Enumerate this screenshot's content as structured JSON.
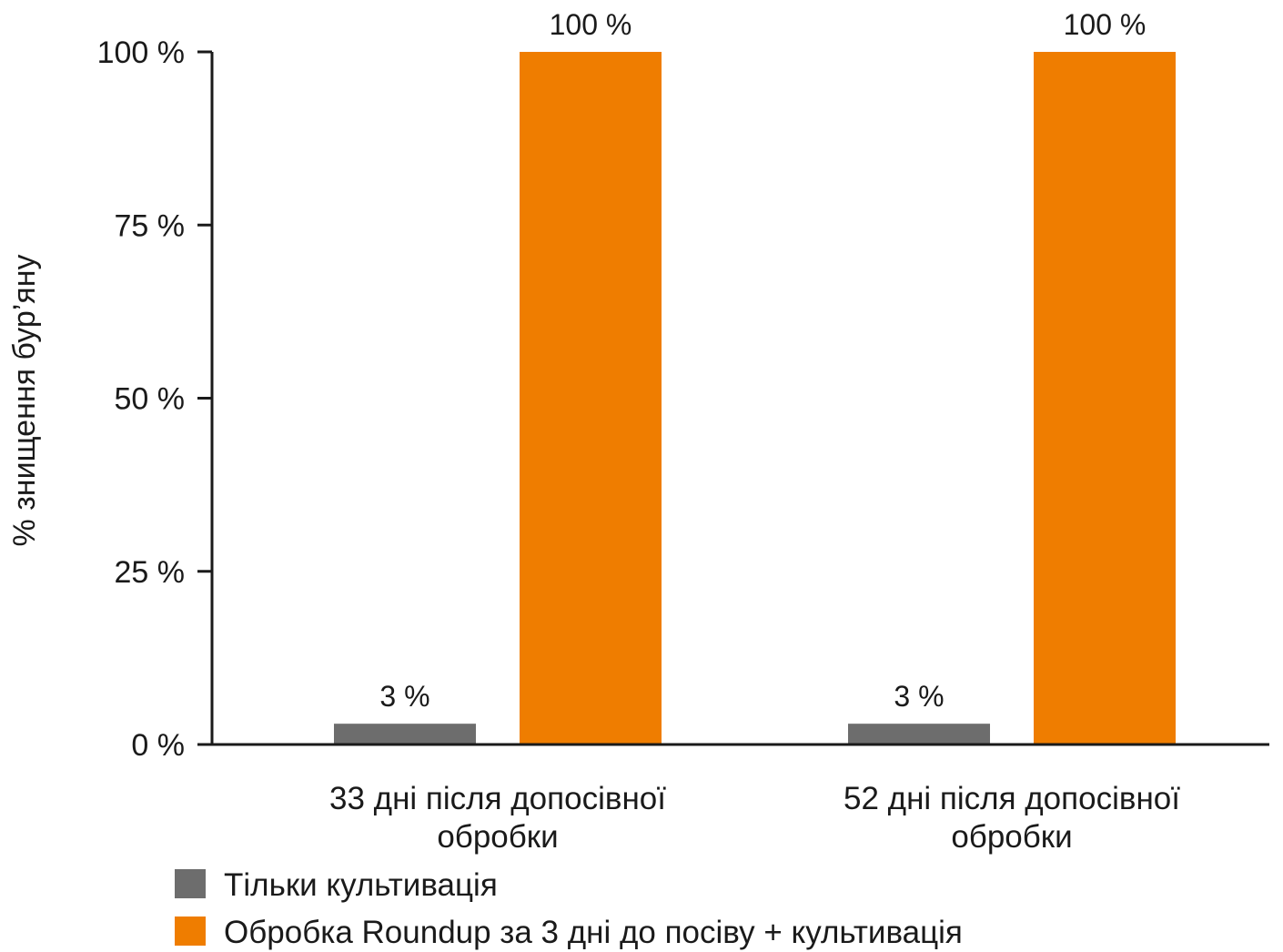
{
  "chart_data": {
    "type": "bar",
    "ylabel": "% знищення бур’яну",
    "ylim": [
      0,
      100
    ],
    "yticks": [
      0,
      25,
      50,
      75,
      100
    ],
    "ytick_labels": [
      "0 %",
      "25 %",
      "50 %",
      "75 %",
      "100 %"
    ],
    "categories": [
      [
        "33 дні після допосівної",
        "обробки"
      ],
      [
        "52 дні після допосівної",
        "обробки"
      ]
    ],
    "series": [
      {
        "name": "Тільки культивація",
        "color": "#6d6d6d",
        "values": [
          3,
          3
        ],
        "labels": [
          "3 %",
          "3 %"
        ]
      },
      {
        "name": "Обробка Roundup за 3 дні до посіву + культивація",
        "color": "#ef7d00",
        "values": [
          100,
          100
        ],
        "labels": [
          "100 %",
          "100 %"
        ]
      }
    ],
    "legend_position": "bottom-left",
    "grid": false
  }
}
